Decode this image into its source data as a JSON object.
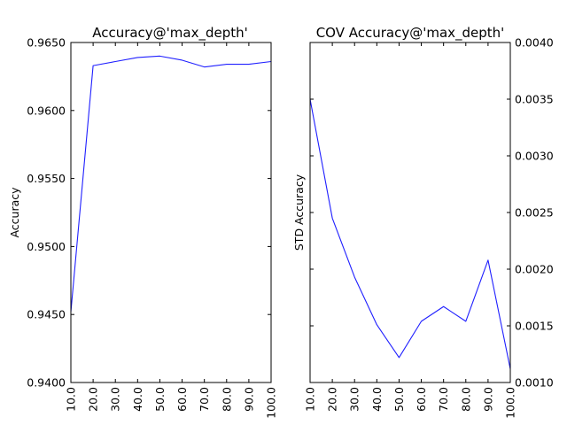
{
  "chart_data": [
    {
      "type": "line",
      "title": "Accuracy@'max_depth'",
      "xlabel": "",
      "ylabel": "Accuracy",
      "categories": [
        "10.0",
        "20.0",
        "30.0",
        "40.0",
        "50.0",
        "60.0",
        "70.0",
        "80.0",
        "90.0",
        "100.0"
      ],
      "x": [
        10,
        20,
        30,
        40,
        50,
        60,
        70,
        80,
        90,
        100
      ],
      "xlim": [
        10,
        100
      ],
      "ylim": [
        0.94,
        0.965
      ],
      "yticks": [
        "0.9400",
        "0.9450",
        "0.9500",
        "0.9550",
        "0.9600",
        "0.9650"
      ],
      "ytick_values": [
        0.94,
        0.945,
        0.95,
        0.955,
        0.96,
        0.965
      ],
      "y_axis_side": "left",
      "grid": false,
      "series": [
        {
          "color": "#1f1fff",
          "values": [
            0.9452,
            0.9633,
            0.9636,
            0.9639,
            0.964,
            0.9637,
            0.9632,
            0.9634,
            0.9634,
            0.9636
          ]
        }
      ]
    },
    {
      "type": "line",
      "title": "COV Accuracy@'max_depth'",
      "xlabel": "",
      "ylabel": "STD Accuracy",
      "categories": [
        "10.0",
        "20.0",
        "30.0",
        "40.0",
        "50.0",
        "60.0",
        "70.0",
        "80.0",
        "90.0",
        "100.0"
      ],
      "x": [
        10,
        20,
        30,
        40,
        50,
        60,
        70,
        80,
        90,
        100
      ],
      "xlim": [
        10,
        100
      ],
      "ylim": [
        0.001,
        0.004
      ],
      "yticks": [
        "0.0010",
        "0.0015",
        "0.0020",
        "0.0025",
        "0.0030",
        "0.0035",
        "0.0040"
      ],
      "ytick_values": [
        0.001,
        0.0015,
        0.002,
        0.0025,
        0.003,
        0.0035,
        0.004
      ],
      "y_axis_side": "right",
      "grid": false,
      "series": [
        {
          "color": "#1f1fff",
          "values": [
            0.0035,
            0.00245,
            0.00193,
            0.00151,
            0.00122,
            0.00154,
            0.00167,
            0.00154,
            0.00208,
            0.00112
          ]
        }
      ]
    }
  ]
}
